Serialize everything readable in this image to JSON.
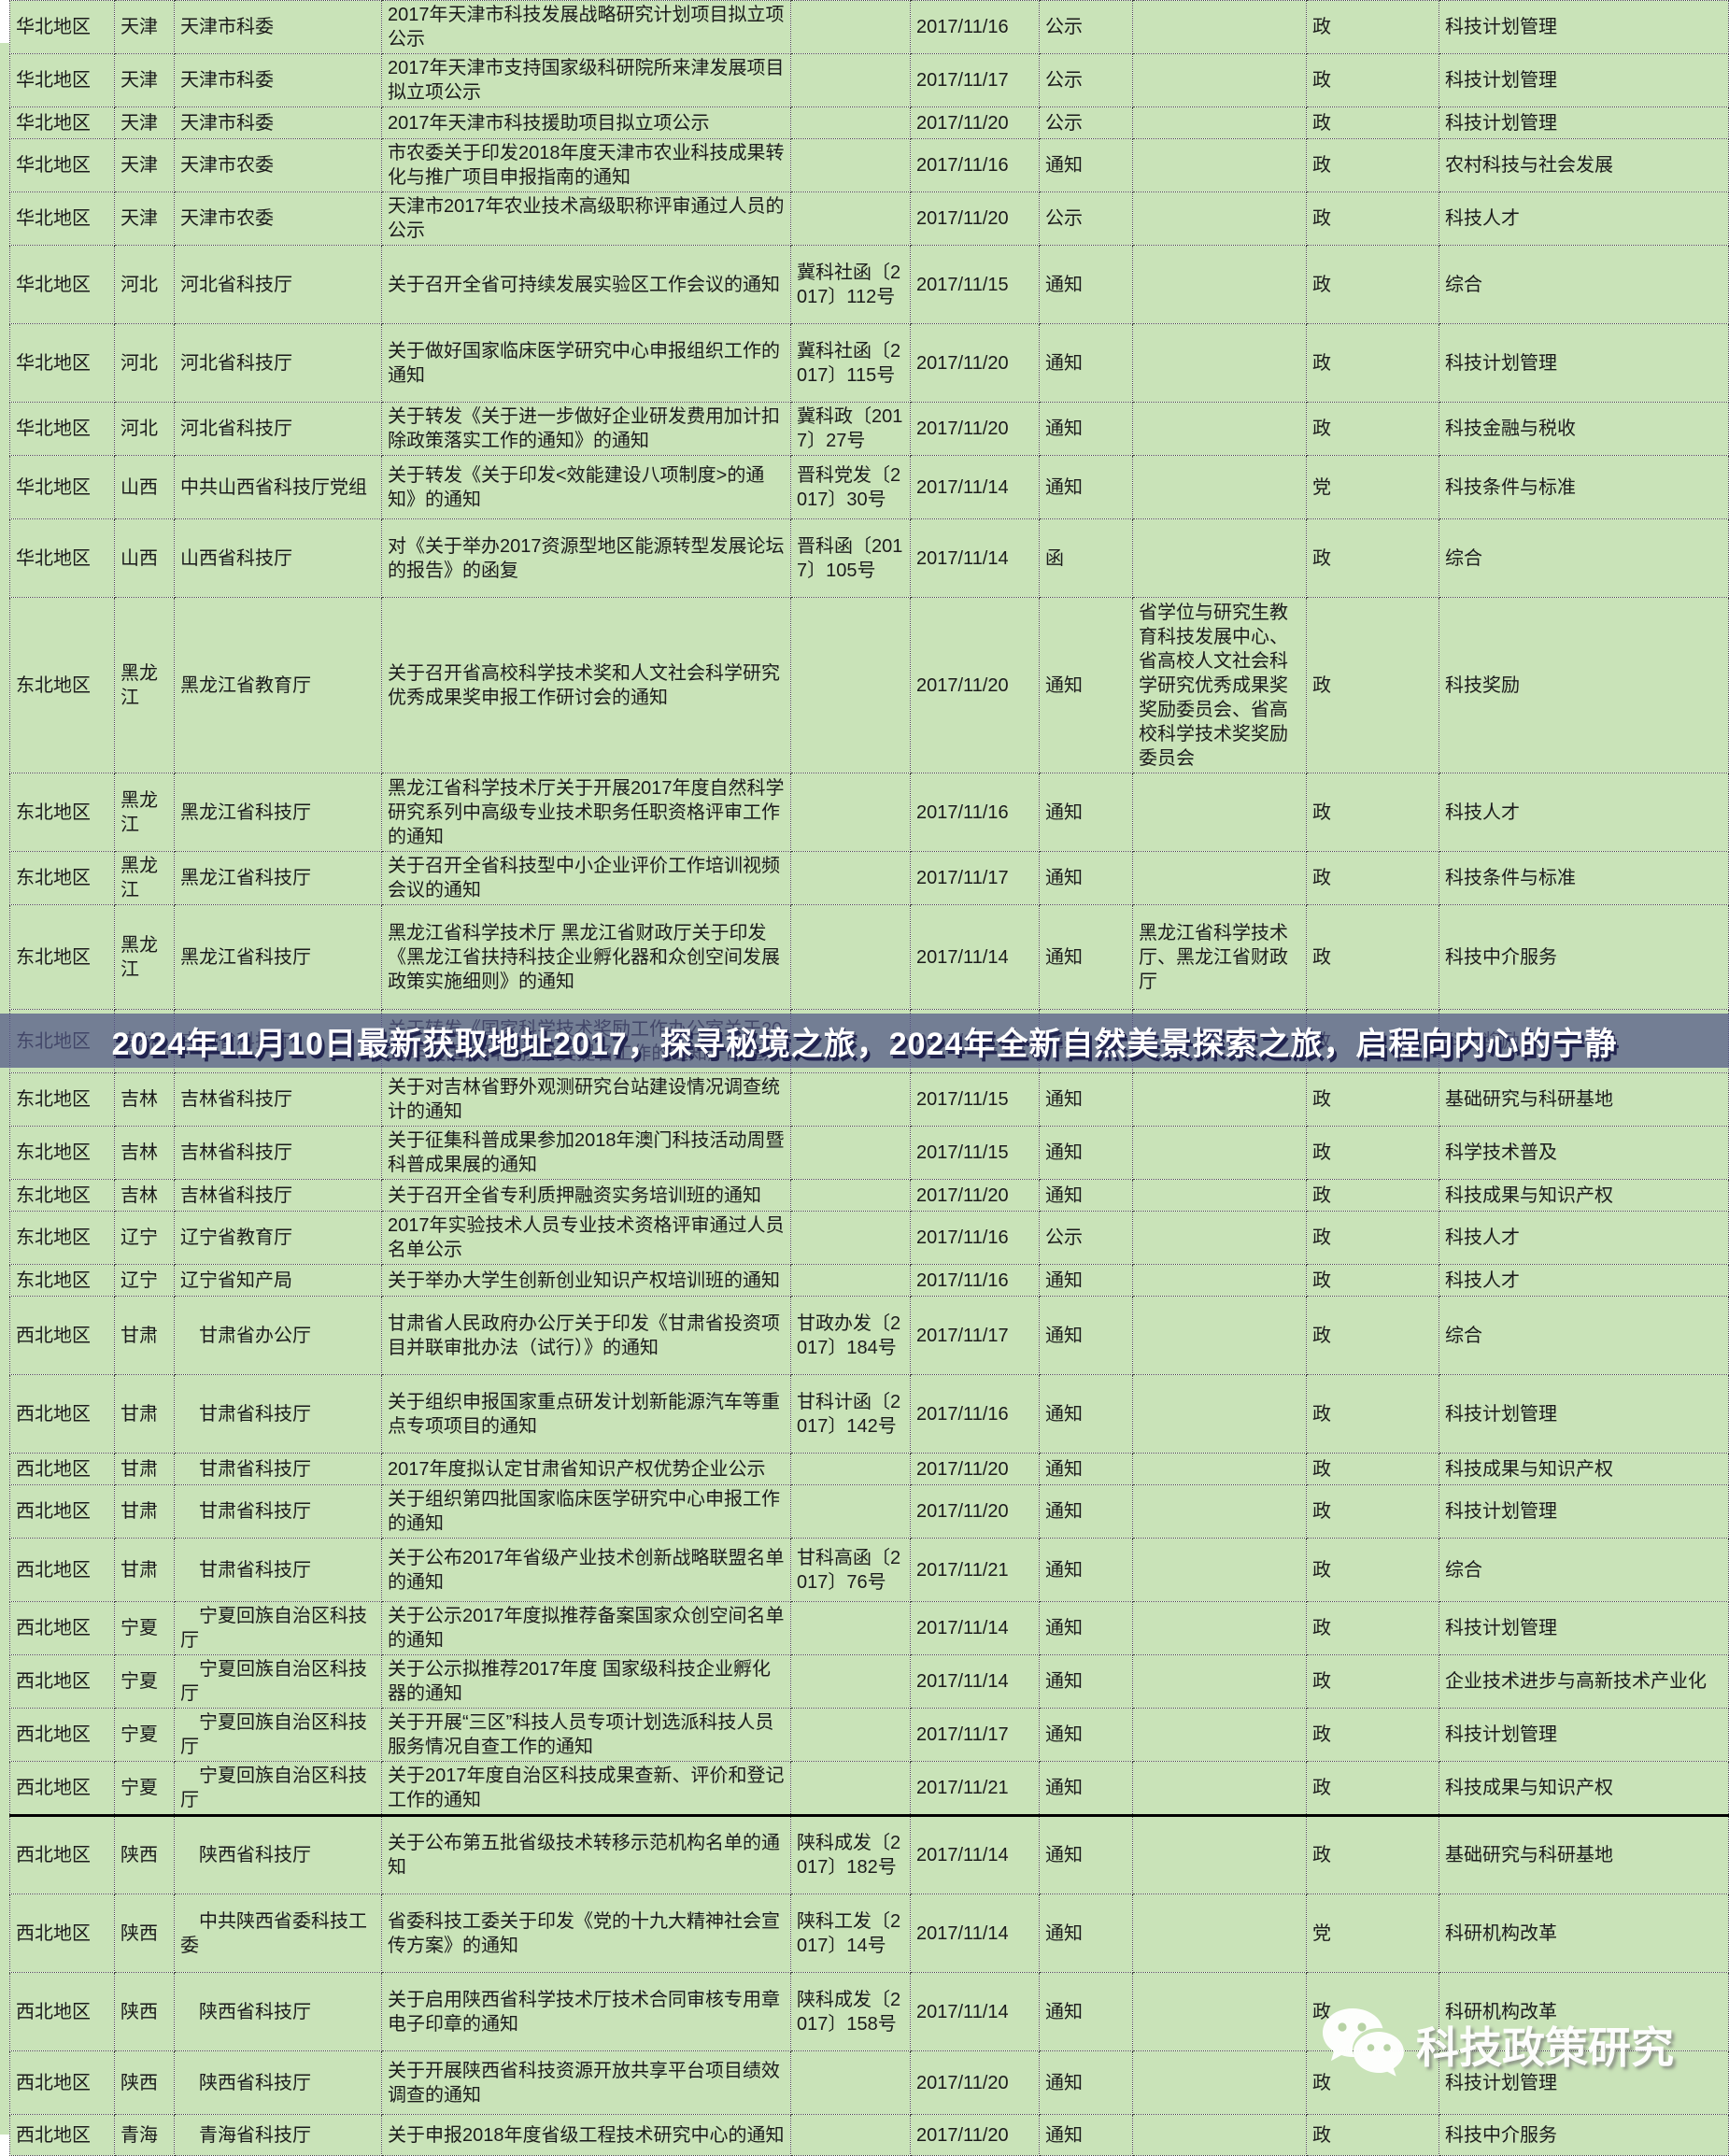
{
  "watermark": {
    "text": "2024年11月10日最新获取地址2017，探寻秘境之旅，2024年全新自然美景探索之旅，启程向内心的宁静",
    "band_color": "rgba(82,88,134,0.72)",
    "text_color": "#ffffff",
    "shadow_color": "#20234f"
  },
  "logo": {
    "text": "科技政策研究",
    "icon": "wechat-icon",
    "color": "#ffffff"
  },
  "style": {
    "cell_bg": "#c9e3b8",
    "grid_color": "#404040",
    "section_border": "#000000",
    "text_color": "#1b1b1b"
  },
  "table": {
    "columns": [
      "region",
      "province",
      "department",
      "title",
      "doc_no",
      "date",
      "doc_type",
      "issuer",
      "party",
      "category"
    ],
    "rows": [
      {
        "region": "华北地区",
        "province": "天津",
        "department": "天津市科委",
        "title": "2017年天津市科技发展战略研究计划项目拟立项公示",
        "doc_no": "",
        "date": "2017/11/16",
        "doc_type": "公示",
        "issuer": "",
        "party": "政",
        "category": "科技计划管理"
      },
      {
        "region": "华北地区",
        "province": "天津",
        "department": "天津市科委",
        "title": "2017年天津市支持国家级科研院所来津发展项目拟立项公示",
        "doc_no": "",
        "date": "2017/11/17",
        "doc_type": "公示",
        "issuer": "",
        "party": "政",
        "category": "科技计划管理"
      },
      {
        "region": "华北地区",
        "province": "天津",
        "department": "天津市科委",
        "title": "2017年天津市科技援助项目拟立项公示",
        "doc_no": "",
        "date": "2017/11/20",
        "doc_type": "公示",
        "issuer": "",
        "party": "政",
        "category": "科技计划管理"
      },
      {
        "region": "华北地区",
        "province": "天津",
        "department": "天津市农委",
        "title": "市农委关于印发2018年度天津市农业科技成果转化与推广项目申报指南的通知",
        "doc_no": "",
        "date": "2017/11/16",
        "doc_type": "通知",
        "issuer": "",
        "party": "政",
        "category": "农村科技与社会发展"
      },
      {
        "region": "华北地区",
        "province": "天津",
        "department": "天津市农委",
        "title": "天津市2017年农业技术高级职称评审通过人员的公示",
        "doc_no": "",
        "date": "2017/11/20",
        "doc_type": "公示",
        "issuer": "",
        "party": "政",
        "category": "科技人才"
      },
      {
        "region": "华北地区",
        "province": "河北",
        "department": "河北省科技厅",
        "title": "关于召开全省可持续发展实验区工作会议的通知",
        "doc_no": "冀科社函〔2017〕112号",
        "date": "2017/11/15",
        "doc_type": "通知",
        "issuer": "",
        "party": "政",
        "category": "综合"
      },
      {
        "region": "华北地区",
        "province": "河北",
        "department": "河北省科技厅",
        "title": "关于做好国家临床医学研究中心申报组织工作的通知",
        "doc_no": "冀科社函〔2017〕115号",
        "date": "2017/11/20",
        "doc_type": "通知",
        "issuer": "",
        "party": "政",
        "category": "科技计划管理"
      },
      {
        "region": "华北地区",
        "province": "河北",
        "department": "河北省科技厅",
        "title": "关于转发《关于进一步做好企业研发费用加计扣除政策落实工作的通知》的通知",
        "doc_no": "冀科政〔2017〕27号",
        "date": "2017/11/20",
        "doc_type": "通知",
        "issuer": "",
        "party": "政",
        "category": "科技金融与税收"
      },
      {
        "region": "华北地区",
        "province": "山西",
        "department": "中共山西省科技厅党组",
        "title": "关于转发《关于印发<效能建设八项制度>的通知》的通知",
        "doc_no": "晋科党发〔2017〕30号",
        "date": "2017/11/14",
        "doc_type": "通知",
        "issuer": "",
        "party": "党",
        "category": "科技条件与标准"
      },
      {
        "region": "华北地区",
        "province": "山西",
        "department": "山西省科技厅",
        "title": "对《关于举办2017资源型地区能源转型发展论坛的报告》的函复",
        "doc_no": "晋科函〔2017〕105号",
        "date": "2017/11/14",
        "doc_type": "函",
        "issuer": "",
        "party": "政",
        "category": "综合"
      },
      {
        "region": "东北地区",
        "province": "黑龙江",
        "department": "黑龙江省教育厅",
        "title": "关于召开省高校科学技术奖和人文社会科学研究优秀成果奖申报工作研讨会的通知",
        "doc_no": "",
        "date": "2017/11/20",
        "doc_type": "通知",
        "issuer": "省学位与研究生教育科技发展中心、省高校人文社会科学研究优秀成果奖奖励委员会、省高校科学技术奖奖励委员会",
        "party": "政",
        "category": "科技奖励"
      },
      {
        "region": "东北地区",
        "province": "黑龙江",
        "department": "黑龙江省科技厅",
        "title": "黑龙江省科学技术厅关于开展2017年度自然科学研究系列中高级专业技术职务任职资格评审工作的通知",
        "doc_no": "",
        "date": "2017/11/16",
        "doc_type": "通知",
        "issuer": "",
        "party": "政",
        "category": "科技人才"
      },
      {
        "region": "东北地区",
        "province": "黑龙江",
        "department": "黑龙江省科技厅",
        "title": "关于召开全省科技型中小企业评价工作培训视频会议的通知",
        "doc_no": "",
        "date": "2017/11/17",
        "doc_type": "通知",
        "issuer": "",
        "party": "政",
        "category": "科技条件与标准"
      },
      {
        "region": "东北地区",
        "province": "黑龙江",
        "department": "黑龙江省科技厅",
        "title": "黑龙江省科学技术厅 黑龙江省财政厅关于印发《黑龙江省扶持科技企业孵化器和众创空间发展政策实施细则》的通知",
        "doc_no": "",
        "date": "2017/11/14",
        "doc_type": "通知",
        "issuer": "黑龙江省科学技术厅、黑龙江省财政厅",
        "party": "政",
        "category": "科技中介服务"
      },
      {
        "region": "东北地区",
        "province": "吉林",
        "department": "吉林省科技厅",
        "title": "关于转发《国家科学技术奖励工作办公室关于2018年度国家科学技术奖提名工作的通知》的通知",
        "doc_no": "",
        "date": "2017/11/14",
        "doc_type": "通知",
        "issuer": "",
        "party": "政",
        "category": "科技奖励"
      },
      {
        "region": "东北地区",
        "province": "吉林",
        "department": "吉林省科技厅",
        "title": "关于对吉林省野外观测研究台站建设情况调查统计的通知",
        "doc_no": "",
        "date": "2017/11/15",
        "doc_type": "通知",
        "issuer": "",
        "party": "政",
        "category": "基础研究与科研基地"
      },
      {
        "region": "东北地区",
        "province": "吉林",
        "department": "吉林省科技厅",
        "title": "关于征集科普成果参加2018年澳门科技活动周暨科普成果展的通知",
        "doc_no": "",
        "date": "2017/11/15",
        "doc_type": "通知",
        "issuer": "",
        "party": "政",
        "category": "科学技术普及"
      },
      {
        "region": "东北地区",
        "province": "吉林",
        "department": "吉林省科技厅",
        "title": "关于召开全省专利质押融资实务培训班的通知",
        "doc_no": "",
        "date": "2017/11/20",
        "doc_type": "通知",
        "issuer": "",
        "party": "政",
        "category": "科技成果与知识产权"
      },
      {
        "region": "东北地区",
        "province": "辽宁",
        "department": "辽宁省教育厅",
        "title": "2017年实验技术人员专业技术资格评审通过人员名单公示",
        "doc_no": "",
        "date": "2017/11/16",
        "doc_type": "公示",
        "issuer": "",
        "party": "政",
        "category": "科技人才"
      },
      {
        "region": "东北地区",
        "province": "辽宁",
        "department": "辽宁省知产局",
        "title": "关于举办大学生创新创业知识产权培训班的通知",
        "doc_no": "",
        "date": "2017/11/16",
        "doc_type": "通知",
        "issuer": "",
        "party": "政",
        "category": "科技人才"
      },
      {
        "region": "西北地区",
        "province": "甘肃",
        "department": "　甘肃省办公厅",
        "title": "甘肃省人民政府办公厅关于印发《甘肃省投资项目并联审批办法（试行）》的通知",
        "doc_no": "甘政办发〔2017〕184号",
        "date": "2017/11/17",
        "doc_type": "通知",
        "issuer": "",
        "party": "政",
        "category": "综合"
      },
      {
        "region": "西北地区",
        "province": "甘肃",
        "department": "　甘肃省科技厅",
        "title": "关于组织申报国家重点研发计划新能源汽车等重点专项项目的通知",
        "doc_no": "甘科计函〔2017〕142号",
        "date": "2017/11/16",
        "doc_type": "通知",
        "issuer": "",
        "party": "政",
        "category": "科技计划管理"
      },
      {
        "region": "西北地区",
        "province": "甘肃",
        "department": "　甘肃省科技厅",
        "title": "2017年度拟认定甘肃省知识产权优势企业公示",
        "doc_no": "",
        "date": "2017/11/20",
        "doc_type": "通知",
        "issuer": "",
        "party": "政",
        "category": "科技成果与知识产权"
      },
      {
        "region": "西北地区",
        "province": "甘肃",
        "department": "　甘肃省科技厅",
        "title": "关于组织第四批国家临床医学研究中心申报工作的通知",
        "doc_no": "",
        "date": "2017/11/20",
        "doc_type": "通知",
        "issuer": "",
        "party": "政",
        "category": "科技计划管理"
      },
      {
        "region": "西北地区",
        "province": "甘肃",
        "department": "　甘肃省科技厅",
        "title": "关于公布2017年省级产业技术创新战略联盟名单的通知",
        "doc_no": "甘科高函〔2017〕76号",
        "date": "2017/11/21",
        "doc_type": "通知",
        "issuer": "",
        "party": "政",
        "category": "综合"
      },
      {
        "region": "西北地区",
        "province": "宁夏",
        "department": "　宁夏回族自治区科技厅",
        "title": "关于公示2017年度拟推荐备案国家众创空间名单的通知",
        "doc_no": "",
        "date": "2017/11/14",
        "doc_type": "通知",
        "issuer": "",
        "party": "政",
        "category": "科技计划管理"
      },
      {
        "region": "西北地区",
        "province": "宁夏",
        "department": "　宁夏回族自治区科技厅",
        "title": "关于公示拟推荐2017年度 国家级科技企业孵化器的通知",
        "doc_no": "",
        "date": "2017/11/14",
        "doc_type": "通知",
        "issuer": "",
        "party": "政",
        "category": "企业技术进步与高新技术产业化"
      },
      {
        "region": "西北地区",
        "province": "宁夏",
        "department": "　宁夏回族自治区科技厅",
        "title": "关于开展“三区”科技人员专项计划选派科技人员服务情况自查工作的通知",
        "doc_no": "",
        "date": "2017/11/17",
        "doc_type": "通知",
        "issuer": "",
        "party": "政",
        "category": "科技计划管理"
      },
      {
        "region": "西北地区",
        "province": "宁夏",
        "department": "　宁夏回族自治区科技厅",
        "title": "关于2017年度自治区科技成果查新、评价和登记工作的通知",
        "doc_no": "",
        "date": "2017/11/21",
        "doc_type": "通知",
        "issuer": "",
        "party": "政",
        "category": "科技成果与知识产权"
      },
      {
        "region": "西北地区",
        "province": "陕西",
        "department": "　陕西省科技厅",
        "title": "关于公布第五批省级技术转移示范机构名单的通知",
        "doc_no": "陕科成发〔2017〕182号",
        "date": "2017/11/14",
        "doc_type": "通知",
        "issuer": "",
        "party": "政",
        "category": "基础研究与科研基地",
        "section_start": true
      },
      {
        "region": "西北地区",
        "province": "陕西",
        "department": "　中共陕西省委科技工委",
        "title": "省委科技工委关于印发《党的十九大精神社会宣传方案》的通知",
        "doc_no": "陕科工发〔2017〕14号",
        "date": "2017/11/14",
        "doc_type": "通知",
        "issuer": "",
        "party": "党",
        "category": "科研机构改革"
      },
      {
        "region": "西北地区",
        "province": "陕西",
        "department": "　陕西省科技厅",
        "title": "关于启用陕西省科学技术厅技术合同审核专用章电子印章的通知",
        "doc_no": "陕科成发〔2017〕158号",
        "date": "2017/11/14",
        "doc_type": "通知",
        "issuer": "",
        "party": "政",
        "category": "科研机构改革"
      },
      {
        "region": "西北地区",
        "province": "陕西",
        "department": "　陕西省科技厅",
        "title": "关于开展陕西省科技资源开放共享平台项目绩效调查的通知",
        "doc_no": "",
        "date": "2017/11/20",
        "doc_type": "通知",
        "issuer": "",
        "party": "政",
        "category": "科技计划管理"
      },
      {
        "region": "西北地区",
        "province": "青海",
        "department": "　青海省科技厅",
        "title": "关于申报2018年度省级工程技术研究中心的通知",
        "doc_no": "",
        "date": "2017/11/20",
        "doc_type": "通知",
        "issuer": "",
        "party": "政",
        "category": "科技中介服务"
      }
    ]
  }
}
